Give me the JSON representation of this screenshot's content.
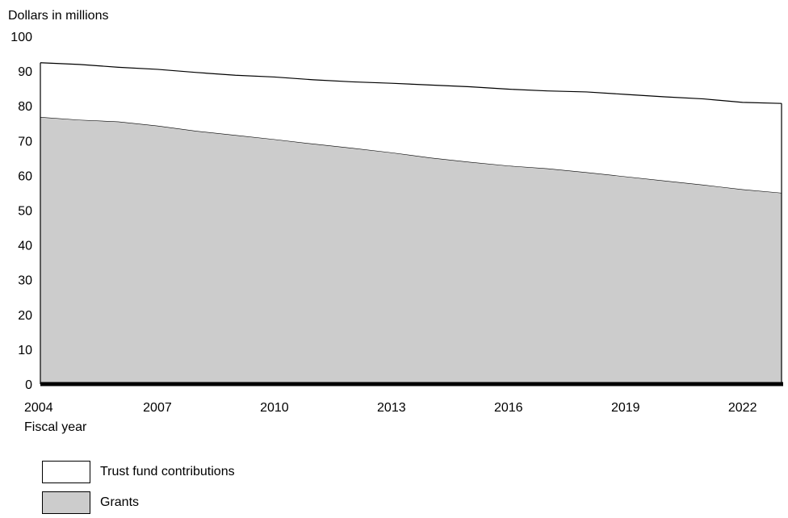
{
  "chart_data": {
    "type": "area",
    "stacked": true,
    "ylabel": "Dollars in millions",
    "xlabel": "Fiscal year",
    "ylim": [
      0,
      100
    ],
    "yticks": [
      0,
      10,
      20,
      30,
      40,
      50,
      60,
      70,
      80,
      90,
      100
    ],
    "xlim": [
      2004,
      2023
    ],
    "xticks": [
      "2004",
      "2007",
      "2010",
      "2013",
      "2016",
      "2019",
      "2022"
    ],
    "x": [
      2004,
      2005,
      2006,
      2007,
      2008,
      2009,
      2010,
      2011,
      2012,
      2013,
      2014,
      2015,
      2016,
      2017,
      2018,
      2019,
      2020,
      2021,
      2022,
      2023
    ],
    "series": [
      {
        "name": "Grants",
        "color": "#cccccc",
        "values": [
          76.8,
          76.0,
          75.5,
          74.3,
          72.8,
          71.6,
          70.4,
          69.1,
          67.9,
          66.6,
          65.1,
          63.9,
          62.8,
          62.0,
          60.9,
          59.7,
          58.5,
          57.3,
          56.0,
          55.0
        ]
      },
      {
        "name": "Trust fund contributions",
        "color": "#ffffff",
        "values": [
          15.6,
          15.9,
          15.6,
          16.2,
          16.8,
          17.2,
          17.9,
          18.4,
          19.0,
          19.9,
          20.9,
          21.6,
          22.0,
          22.3,
          23.1,
          23.6,
          24.1,
          24.7,
          25.0,
          25.7
        ]
      }
    ],
    "legend_position": "bottom-left",
    "grid": false
  }
}
